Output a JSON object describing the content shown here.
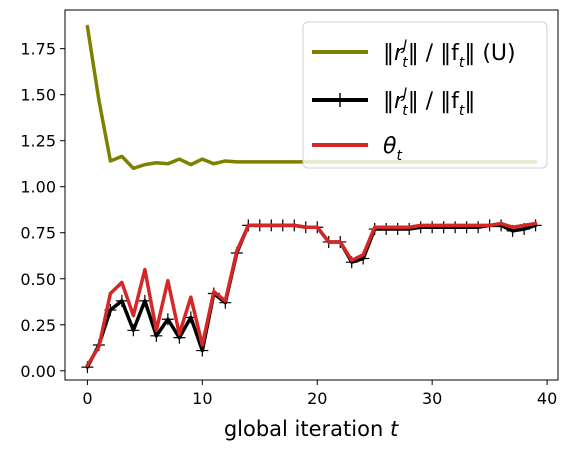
{
  "chart_data": {
    "type": "line",
    "xlabel": "global iteration",
    "xlabel_var": "t",
    "xlim": [
      -1.95,
      40.95
    ],
    "ylim": [
      -0.05,
      1.96
    ],
    "xticks": [
      0,
      10,
      20,
      30,
      40
    ],
    "xtick_labels": [
      "0",
      "10",
      "20",
      "30",
      "40"
    ],
    "yticks": [
      0.0,
      0.25,
      0.5,
      0.75,
      1.0,
      1.25,
      1.5,
      1.75
    ],
    "ytick_labels": [
      "0.00",
      "0.25",
      "0.50",
      "0.75",
      "1.00",
      "1.25",
      "1.50",
      "1.75"
    ],
    "grid": false,
    "legend_position": "top-right",
    "x": [
      0,
      1,
      2,
      3,
      4,
      5,
      6,
      7,
      8,
      9,
      10,
      11,
      12,
      13,
      14,
      15,
      16,
      17,
      18,
      19,
      20,
      21,
      22,
      23,
      24,
      25,
      26,
      27,
      28,
      29,
      30,
      31,
      32,
      33,
      34,
      35,
      36,
      37,
      38,
      39
    ],
    "series": [
      {
        "name": "‖r_t^J‖ / ‖f_t‖ (U)",
        "color": "#808000",
        "marker": "none",
        "values": [
          1.87,
          1.47,
          1.14,
          1.165,
          1.1,
          1.12,
          1.13,
          1.125,
          1.15,
          1.12,
          1.15,
          1.125,
          1.14,
          1.135,
          1.135,
          1.135,
          1.135,
          1.135,
          1.135,
          1.135,
          1.135,
          1.135,
          1.135,
          1.135,
          1.135,
          1.135,
          1.135,
          1.135,
          1.135,
          1.135,
          1.135,
          1.135,
          1.135,
          1.135,
          1.135,
          1.135,
          1.135,
          1.135,
          1.135,
          1.135
        ]
      },
      {
        "name": "‖r_t^J‖ / ‖f_t‖",
        "color": "#000000",
        "marker": "plus",
        "values": [
          0.02,
          0.14,
          0.33,
          0.38,
          0.22,
          0.38,
          0.19,
          0.28,
          0.18,
          0.29,
          0.11,
          0.42,
          0.37,
          0.64,
          0.79,
          0.79,
          0.79,
          0.79,
          0.79,
          0.78,
          0.78,
          0.7,
          0.7,
          0.59,
          0.61,
          0.77,
          0.77,
          0.77,
          0.77,
          0.78,
          0.78,
          0.78,
          0.78,
          0.78,
          0.78,
          0.79,
          0.79,
          0.76,
          0.77,
          0.79
        ]
      },
      {
        "name": "θ_t",
        "color": "#d62728",
        "marker": "none",
        "values": [
          0.03,
          0.13,
          0.42,
          0.48,
          0.3,
          0.55,
          0.22,
          0.49,
          0.2,
          0.4,
          0.14,
          0.43,
          0.38,
          0.65,
          0.79,
          0.79,
          0.79,
          0.79,
          0.79,
          0.78,
          0.78,
          0.7,
          0.7,
          0.6,
          0.63,
          0.78,
          0.78,
          0.78,
          0.78,
          0.79,
          0.79,
          0.79,
          0.79,
          0.79,
          0.79,
          0.79,
          0.8,
          0.78,
          0.79,
          0.8
        ]
      }
    ],
    "legend": {
      "entries": [
        {
          "prefix": "‖r",
          "sub": "t",
          "sup": "J",
          "suffix": "‖ / ‖f",
          "sub2": "t",
          "end": "‖ (U)"
        },
        {
          "prefix": "‖r",
          "sub": "t",
          "sup": "J",
          "suffix": "‖ / ‖f",
          "sub2": "t",
          "end": "‖"
        },
        {
          "prefix": "θ",
          "sub": "t",
          "sup": "",
          "suffix": "",
          "sub2": "",
          "end": ""
        }
      ]
    }
  }
}
